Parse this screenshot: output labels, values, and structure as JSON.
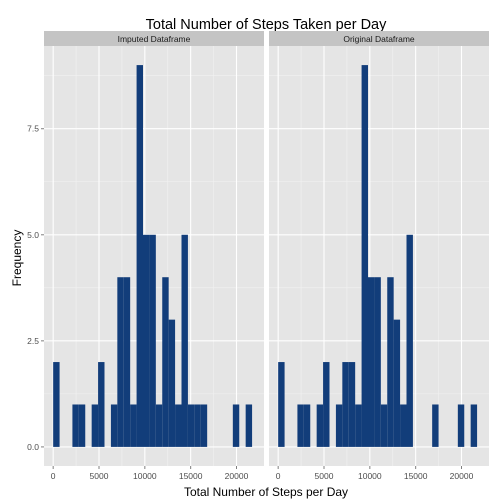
{
  "chart_data": {
    "type": "bar",
    "title": "Total Number of Steps Taken per Day",
    "xlabel": "Total Number of Steps per Day",
    "ylabel": "Frequency",
    "xlim": [
      -1000,
      23000
    ],
    "ylim": [
      -0.45,
      9.45
    ],
    "x_ticks": [
      0,
      5000,
      10000,
      15000,
      20000
    ],
    "x_tick_labels": [
      "0",
      "5000",
      "10000",
      "15000",
      "20000"
    ],
    "y_ticks": [
      0,
      2.5,
      5,
      7.5
    ],
    "y_tick_labels": [
      "0.0",
      "2.5",
      "5.0",
      "7.5"
    ],
    "grid": true,
    "bar_color": "#123D7A",
    "panel_background": "#E5E5E5",
    "strip_background": "#C4C4C4",
    "bin_starts": [
      0,
      700,
      1400,
      2100,
      2800,
      3500,
      4200,
      4900,
      5600,
      6300,
      7000,
      7700,
      8400,
      9100,
      9800,
      10500,
      11200,
      11900,
      12600,
      13300,
      14000,
      14700,
      15400,
      16100,
      16800,
      17500,
      18200,
      18900,
      19600,
      20300,
      21000
    ],
    "bin_width": 700,
    "panels": [
      {
        "name": "Imputed Dataframe",
        "values": [
          2,
          0,
          0,
          1,
          1,
          0,
          1,
          2,
          0,
          1,
          4,
          4,
          1,
          9,
          5,
          5,
          1,
          4,
          3,
          1,
          5,
          1,
          1,
          1,
          0,
          0,
          0,
          0,
          1,
          0,
          1
        ]
      },
      {
        "name": "Original Dataframe",
        "values": [
          2,
          0,
          0,
          1,
          1,
          0,
          1,
          2,
          0,
          1,
          2,
          2,
          1,
          9,
          4,
          4,
          1,
          4,
          3,
          1,
          5,
          0,
          0,
          0,
          1,
          0,
          0,
          0,
          1,
          0,
          1
        ]
      }
    ]
  }
}
